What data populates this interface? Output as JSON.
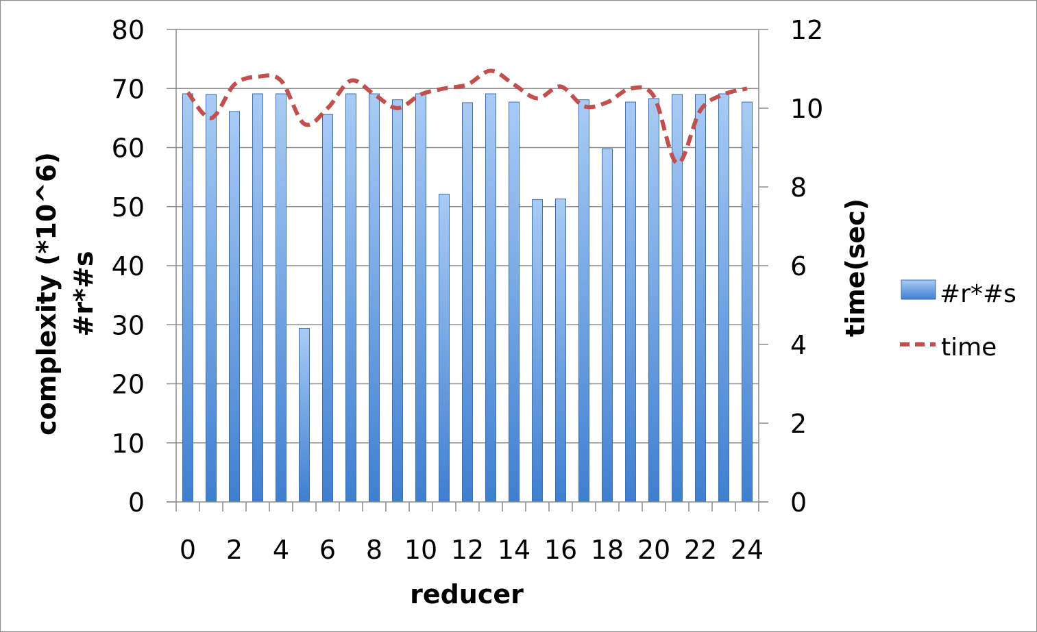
{
  "chart_data": {
    "type": "bar",
    "x": [
      0,
      1,
      2,
      3,
      4,
      5,
      6,
      7,
      8,
      9,
      10,
      11,
      12,
      13,
      14,
      15,
      16,
      17,
      18,
      19,
      20,
      21,
      22,
      23,
      24
    ],
    "xticks": [
      "0",
      "2",
      "4",
      "6",
      "8",
      "10",
      "12",
      "14",
      "16",
      "18",
      "20",
      "22",
      "24"
    ],
    "xlabel": "reducer",
    "ylabel_lines": [
      "complexity (*10^6)",
      "#r*#s"
    ],
    "y2label": "time(sec)",
    "ylim": [
      0,
      80
    ],
    "yticks": [
      "0",
      "10",
      "20",
      "30",
      "40",
      "50",
      "60",
      "70",
      "80"
    ],
    "y2lim": [
      0,
      12
    ],
    "y2ticks": [
      "0",
      "2",
      "4",
      "6",
      "8",
      "10",
      "12"
    ],
    "grid": true,
    "legend_position": "right",
    "series": [
      {
        "name": "#r*#s",
        "kind": "bar",
        "axis": "left",
        "color": "#4f8fdc",
        "values": [
          69.1,
          69.0,
          66.1,
          69.1,
          69.1,
          29.4,
          65.6,
          69.1,
          69.1,
          68.1,
          69.1,
          52.1,
          67.6,
          69.1,
          67.7,
          51.2,
          51.3,
          68.1,
          59.8,
          67.7,
          68.3,
          69.0,
          69.0,
          69.1,
          67.7
        ]
      },
      {
        "name": "time",
        "kind": "line",
        "axis": "right",
        "color": "#c0504d",
        "style": "dashed",
        "values": [
          10.4,
          9.75,
          10.6,
          10.8,
          10.7,
          9.6,
          10.0,
          10.7,
          10.35,
          10.0,
          10.35,
          10.5,
          10.6,
          10.95,
          10.6,
          10.25,
          10.55,
          10.05,
          10.15,
          10.5,
          10.3,
          8.6,
          9.95,
          10.35,
          10.5
        ]
      }
    ]
  }
}
